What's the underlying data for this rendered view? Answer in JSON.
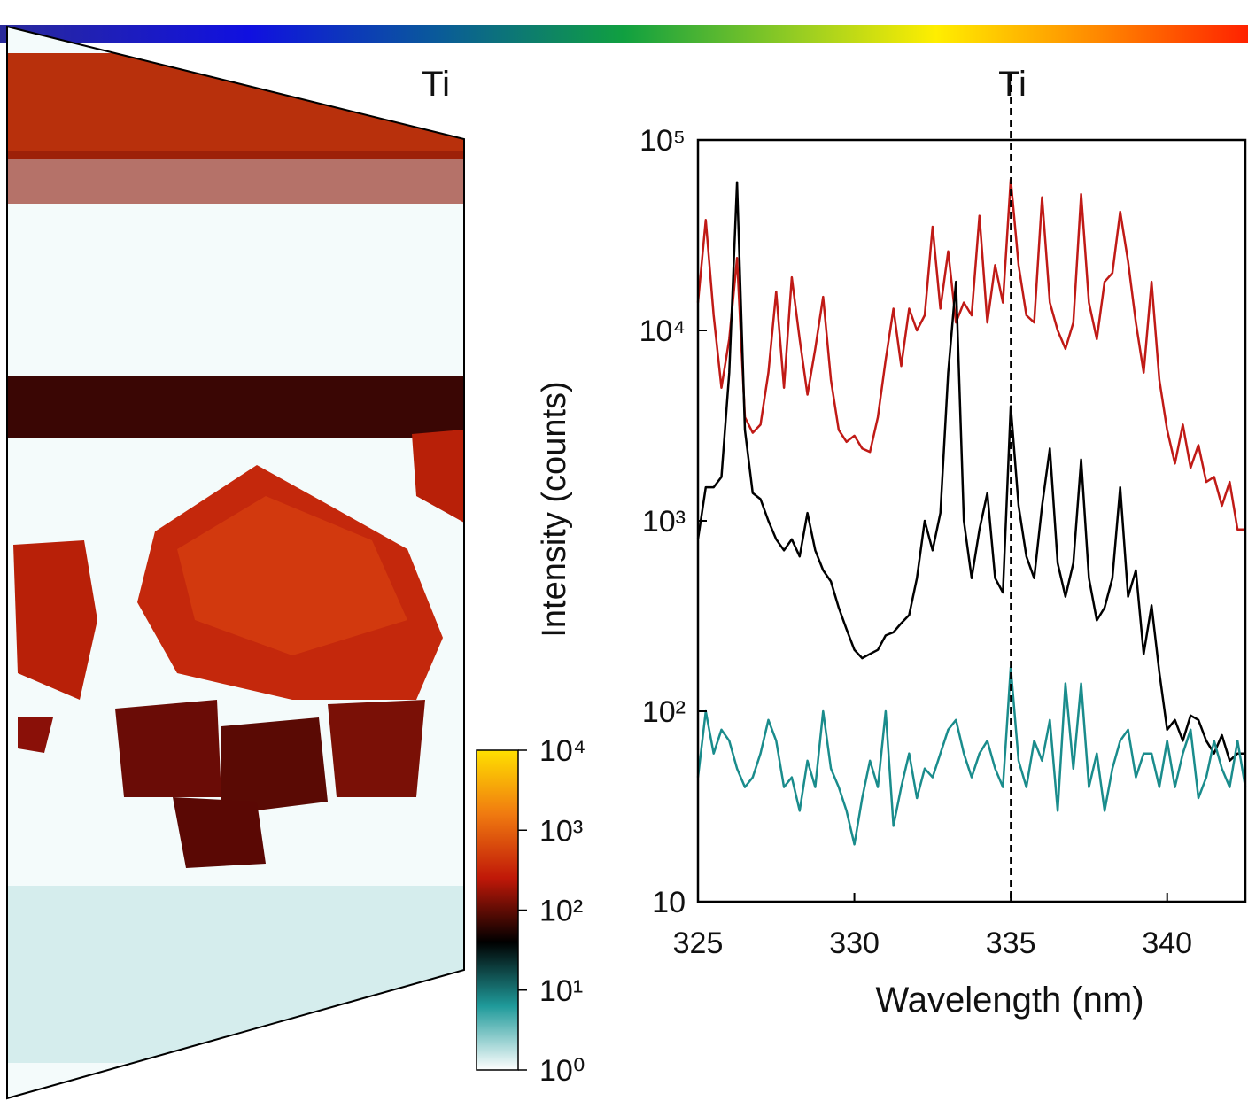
{
  "chart_data": [
    {
      "type": "heatmap",
      "title": "Ti",
      "colorbar": {
        "lim": [
          1,
          10000
        ],
        "log": true,
        "ticks": [
          {
            "value": 1,
            "label": "10⁰"
          },
          {
            "value": 10,
            "label": "10¹"
          },
          {
            "value": 100,
            "label": "10²"
          },
          {
            "value": 1000,
            "label": "10³"
          },
          {
            "value": 10000,
            "label": "10⁴"
          }
        ],
        "colors": [
          "#ffffff",
          "#1f9a9a",
          "#000000",
          "#c01808",
          "#f07a10",
          "#ffe000"
        ]
      }
    },
    {
      "type": "line",
      "title": "Ti",
      "y_label": "Intensity (counts)",
      "x_label": "Wavelength (nm)",
      "log_y": true,
      "xlim": [
        325,
        342.5
      ],
      "ylim": [
        10,
        100000
      ],
      "xticks": [
        325,
        330,
        335,
        340
      ],
      "yticks": [
        10,
        {
          "value": 100,
          "label": "10²"
        },
        {
          "value": 1000,
          "label": "10³"
        },
        {
          "value": 10000,
          "label": "10⁴"
        },
        {
          "value": 100000,
          "label": "10⁵"
        }
      ],
      "vline": 335,
      "x": [
        325,
        325.25,
        325.5,
        325.75,
        326,
        326.25,
        326.5,
        326.75,
        327,
        327.25,
        327.5,
        327.75,
        328,
        328.25,
        328.5,
        328.75,
        329,
        329.25,
        329.5,
        329.75,
        330,
        330.25,
        330.5,
        330.75,
        331,
        331.25,
        331.5,
        331.75,
        332,
        332.25,
        332.5,
        332.75,
        333,
        333.25,
        333.5,
        333.75,
        334,
        334.25,
        334.5,
        334.75,
        335,
        335.25,
        335.5,
        335.75,
        336,
        336.25,
        336.5,
        336.75,
        337,
        337.25,
        337.5,
        337.75,
        338,
        338.25,
        338.5,
        338.75,
        339,
        339.25,
        339.5,
        339.75,
        340,
        340.25,
        340.5,
        340.75,
        341,
        341.25,
        341.5,
        341.75,
        342,
        342.25,
        342.5
      ],
      "series": [
        {
          "color": "#c01a16",
          "values": [
            14000,
            38000,
            12000,
            5000,
            9000,
            24000,
            3500,
            2900,
            3200,
            6000,
            16000,
            5000,
            19000,
            9000,
            4600,
            8000,
            15000,
            5500,
            3000,
            2600,
            2800,
            2400,
            2300,
            3500,
            7000,
            13000,
            6500,
            13000,
            10000,
            12000,
            35000,
            13000,
            26000,
            11000,
            14000,
            12000,
            40000,
            11000,
            22000,
            14000,
            62000,
            22000,
            12000,
            11000,
            50000,
            14000,
            10000,
            8000,
            11000,
            52000,
            14000,
            9000,
            18000,
            20000,
            42000,
            23000,
            11000,
            6000,
            18000,
            5500,
            3000,
            2000,
            3200,
            1900,
            2500,
            1600,
            1700,
            1200,
            1600,
            900,
            900
          ]
        },
        {
          "color": "#000000",
          "values": [
            800,
            1500,
            1500,
            1700,
            6000,
            60000,
            3000,
            1400,
            1300,
            1000,
            800,
            700,
            800,
            650,
            1100,
            700,
            550,
            480,
            350,
            270,
            210,
            190,
            200,
            210,
            250,
            260,
            290,
            320,
            500,
            1000,
            700,
            1100,
            6000,
            18000,
            1000,
            500,
            900,
            1400,
            500,
            420,
            4000,
            1200,
            650,
            500,
            1200,
            2400,
            600,
            400,
            600,
            2100,
            500,
            300,
            350,
            500,
            1500,
            400,
            550,
            200,
            360,
            160,
            80,
            90,
            70,
            95,
            90,
            70,
            60,
            75,
            55,
            60,
            60
          ]
        },
        {
          "color": "#1a8c8c",
          "values": [
            45,
            100,
            60,
            80,
            70,
            50,
            40,
            45,
            60,
            90,
            70,
            40,
            45,
            30,
            55,
            40,
            100,
            50,
            40,
            30,
            20,
            35,
            55,
            40,
            100,
            25,
            40,
            60,
            35,
            50,
            45,
            60,
            80,
            90,
            60,
            45,
            60,
            70,
            50,
            40,
            170,
            55,
            40,
            70,
            55,
            90,
            30,
            140,
            50,
            140,
            40,
            60,
            30,
            50,
            70,
            80,
            45,
            60,
            60,
            40,
            70,
            40,
            60,
            80,
            35,
            45,
            70,
            50,
            40,
            70,
            40
          ]
        }
      ]
    }
  ]
}
